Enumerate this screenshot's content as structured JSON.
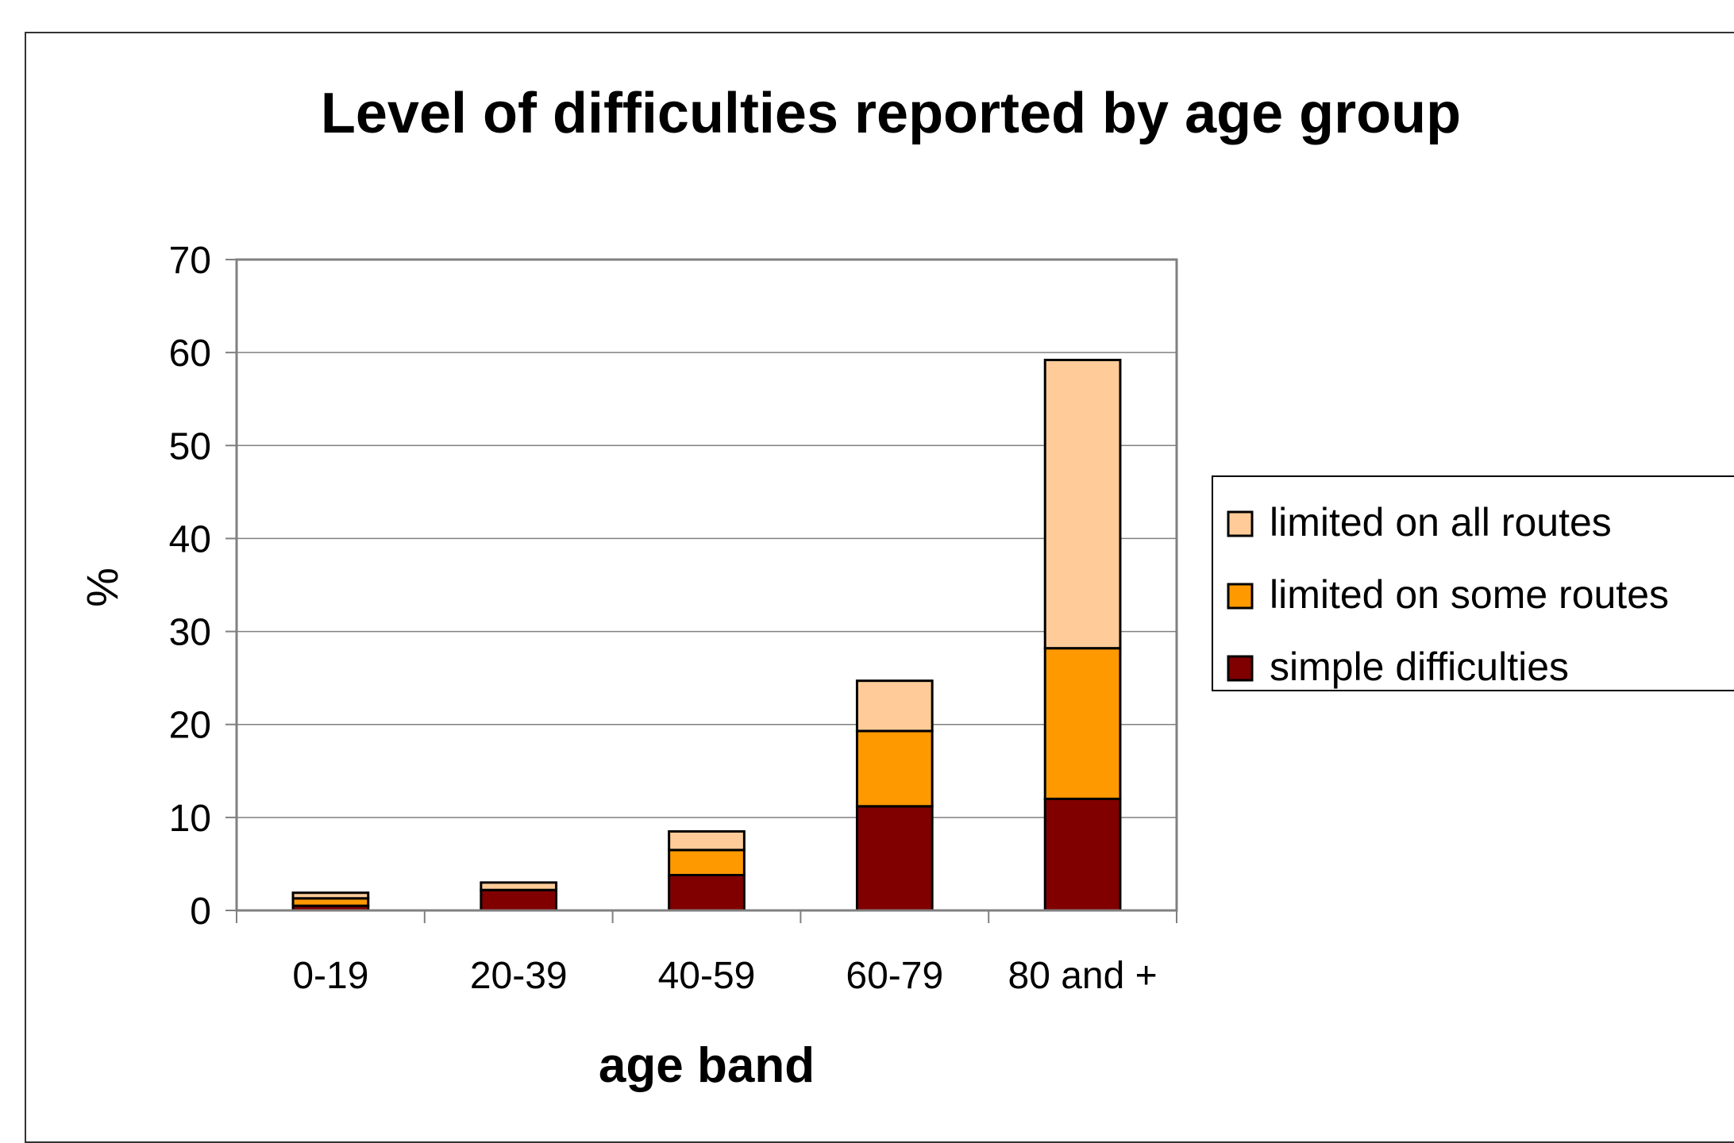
{
  "chart_data": {
    "type": "bar",
    "stacked": true,
    "title": "Level of difficulties reported by age group",
    "xlabel": "age band",
    "ylabel": "%",
    "categories": [
      "0-19",
      "20-39",
      "40-59",
      "60-79",
      "80 and +"
    ],
    "ylim": [
      0,
      70
    ],
    "yticks": [
      0,
      10,
      20,
      30,
      40,
      50,
      60,
      70
    ],
    "grid": true,
    "legend_position": "right",
    "series": [
      {
        "name": "simple difficulties",
        "color": "#800000",
        "values": [
          0.5,
          2.2,
          3.8,
          11.2,
          12.0
        ]
      },
      {
        "name": "limited on some routes",
        "color": "#FF9900",
        "values": [
          0.8,
          0.0,
          2.7,
          8.1,
          16.2
        ]
      },
      {
        "name": "limited on all routes",
        "color": "#FFCC99",
        "values": [
          0.6,
          0.8,
          2.0,
          5.4,
          31.0
        ]
      }
    ],
    "legend_order": [
      "limited on all routes",
      "limited on some routes",
      "simple difficulties"
    ],
    "colors": {
      "grid": "#808080",
      "plot_border": "#808080",
      "bar_outline": "#000000"
    }
  }
}
